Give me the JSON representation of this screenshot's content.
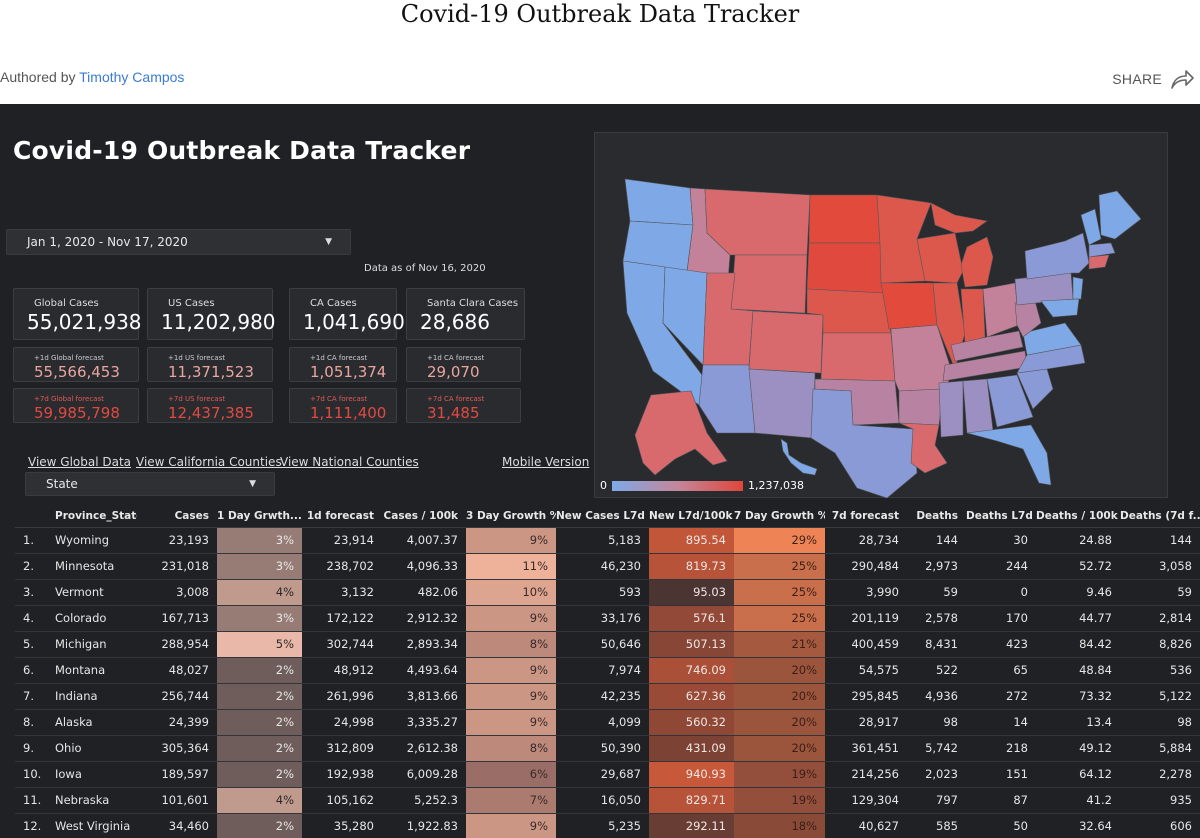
{
  "page": {
    "title": "Covid-19 Outbreak Data Tracker",
    "author_prefix": "Authored by",
    "author_name": "Timothy Campos",
    "share_label": "SHARE"
  },
  "dashboard": {
    "title": "Covid-19 Outbreak Data Tracker",
    "date_range": "Jan 1, 2020 - Nov 17, 2020",
    "data_as_of": "Data as of Nov 16, 2020",
    "cards": [
      {
        "label": "Global Cases",
        "value": "55,021,938"
      },
      {
        "label": "US Cases",
        "value": "11,202,980"
      },
      {
        "label": "CA Cases",
        "value": "1,041,690"
      },
      {
        "label": "Santa Clara Cases",
        "value": "28,686"
      }
    ],
    "forecast_1d": [
      {
        "label": "+1d Global forecast",
        "value": "55,566,453"
      },
      {
        "label": "+1d US forecast",
        "value": "11,371,523"
      },
      {
        "label": "+1d CA forecast",
        "value": "1,051,374"
      },
      {
        "label": "+1d CA forecast",
        "value": "29,070"
      }
    ],
    "forecast_7d": [
      {
        "label": "+7d Global forecast",
        "value": "59,985,798"
      },
      {
        "label": "+7d US forecast",
        "value": "12,437,385"
      },
      {
        "label": "+7d CA forecast",
        "value": "1,111,400"
      },
      {
        "label": "+7d CA forecast",
        "value": "31,485"
      }
    ],
    "links": {
      "global": "View Global Data",
      "california": "View California Counties",
      "national": "View National Counties",
      "mobile": "Mobile Version"
    },
    "state_select": "State",
    "map": {
      "legend_min": "0",
      "legend_max": "1,237,038",
      "colors": {
        "low": "#7ea9e6",
        "mid": "#c3879b",
        "high": "#e0463b"
      }
    }
  },
  "table": {
    "columns": [
      "",
      "Province_State",
      "Cases",
      "1 Day Grwth...",
      "1d forecast",
      "Cases / 100k",
      "3 Day Growth %",
      "New Cases L7d",
      "New L7d/100k",
      "7 Day Growth %",
      "7d forecast",
      "Deaths",
      "Deaths L7d",
      "Deaths / 100k",
      "Deaths (7d f..."
    ],
    "sort_caret": "▾",
    "rows": [
      {
        "idx": "1.",
        "state": "Wyoming",
        "cases": "23,193",
        "g1": "3%",
        "f1": "23,914",
        "c100k": "4,007.37",
        "g3": "9%",
        "new7": "5,183",
        "n100k": "895.54",
        "g7": "29%",
        "f7": "28,734",
        "deaths": "144",
        "d7": "30",
        "d100k": "24.88",
        "df7": "144"
      },
      {
        "idx": "2.",
        "state": "Minnesota",
        "cases": "231,018",
        "g1": "3%",
        "f1": "238,702",
        "c100k": "4,096.33",
        "g3": "11%",
        "new7": "46,230",
        "n100k": "819.73",
        "g7": "25%",
        "f7": "290,484",
        "deaths": "2,973",
        "d7": "244",
        "d100k": "52.72",
        "df7": "3,058"
      },
      {
        "idx": "3.",
        "state": "Vermont",
        "cases": "3,008",
        "g1": "4%",
        "f1": "3,132",
        "c100k": "482.06",
        "g3": "10%",
        "new7": "593",
        "n100k": "95.03",
        "g7": "25%",
        "f7": "3,990",
        "deaths": "59",
        "d7": "0",
        "d100k": "9.46",
        "df7": "59"
      },
      {
        "idx": "4.",
        "state": "Colorado",
        "cases": "167,713",
        "g1": "3%",
        "f1": "172,122",
        "c100k": "2,912.32",
        "g3": "9%",
        "new7": "33,176",
        "n100k": "576.1",
        "g7": "25%",
        "f7": "201,119",
        "deaths": "2,578",
        "d7": "170",
        "d100k": "44.77",
        "df7": "2,814"
      },
      {
        "idx": "5.",
        "state": "Michigan",
        "cases": "288,954",
        "g1": "5%",
        "f1": "302,744",
        "c100k": "2,893.34",
        "g3": "8%",
        "new7": "50,646",
        "n100k": "507.13",
        "g7": "21%",
        "f7": "400,459",
        "deaths": "8,431",
        "d7": "423",
        "d100k": "84.42",
        "df7": "8,826"
      },
      {
        "idx": "6.",
        "state": "Montana",
        "cases": "48,027",
        "g1": "2%",
        "f1": "48,912",
        "c100k": "4,493.64",
        "g3": "9%",
        "new7": "7,974",
        "n100k": "746.09",
        "g7": "20%",
        "f7": "54,575",
        "deaths": "522",
        "d7": "65",
        "d100k": "48.84",
        "df7": "536"
      },
      {
        "idx": "7.",
        "state": "Indiana",
        "cases": "256,744",
        "g1": "2%",
        "f1": "261,996",
        "c100k": "3,813.66",
        "g3": "9%",
        "new7": "42,235",
        "n100k": "627.36",
        "g7": "20%",
        "f7": "295,845",
        "deaths": "4,936",
        "d7": "272",
        "d100k": "73.32",
        "df7": "5,122"
      },
      {
        "idx": "8.",
        "state": "Alaska",
        "cases": "24,399",
        "g1": "2%",
        "f1": "24,998",
        "c100k": "3,335.27",
        "g3": "9%",
        "new7": "4,099",
        "n100k": "560.32",
        "g7": "20%",
        "f7": "28,917",
        "deaths": "98",
        "d7": "14",
        "d100k": "13.4",
        "df7": "98"
      },
      {
        "idx": "9.",
        "state": "Ohio",
        "cases": "305,364",
        "g1": "2%",
        "f1": "312,809",
        "c100k": "2,612.38",
        "g3": "8%",
        "new7": "50,390",
        "n100k": "431.09",
        "g7": "20%",
        "f7": "361,451",
        "deaths": "5,742",
        "d7": "218",
        "d100k": "49.12",
        "df7": "5,884"
      },
      {
        "idx": "10.",
        "state": "Iowa",
        "cases": "189,597",
        "g1": "2%",
        "f1": "192,938",
        "c100k": "6,009.28",
        "g3": "6%",
        "new7": "29,687",
        "n100k": "940.93",
        "g7": "19%",
        "f7": "214,256",
        "deaths": "2,023",
        "d7": "151",
        "d100k": "64.12",
        "df7": "2,278"
      },
      {
        "idx": "11.",
        "state": "Nebraska",
        "cases": "101,601",
        "g1": "4%",
        "f1": "105,162",
        "c100k": "5,252.3",
        "g3": "7%",
        "new7": "16,050",
        "n100k": "829.71",
        "g7": "19%",
        "f7": "129,304",
        "deaths": "797",
        "d7": "87",
        "d100k": "41.2",
        "df7": "935"
      },
      {
        "idx": "12.",
        "state": "West Virginia",
        "cases": "34,460",
        "g1": "2%",
        "f1": "35,280",
        "c100k": "1,922.83",
        "g3": "9%",
        "new7": "5,235",
        "n100k": "292.11",
        "g7": "18%",
        "f7": "40,627",
        "deaths": "585",
        "d7": "50",
        "d100k": "32.64",
        "df7": "606"
      }
    ]
  }
}
